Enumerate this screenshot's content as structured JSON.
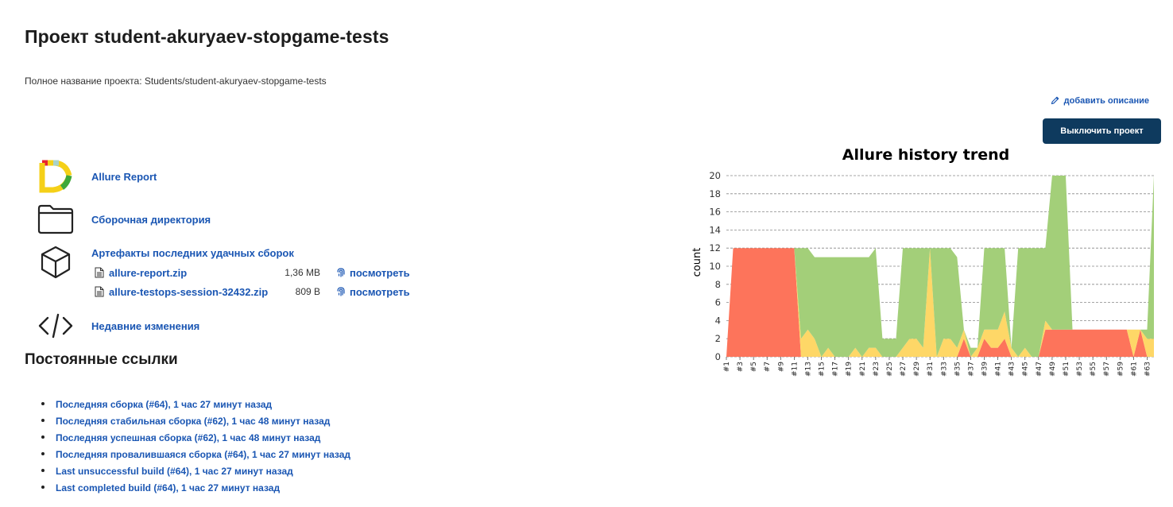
{
  "header": {
    "title": "Проект student-akuryaev-stopgame-tests",
    "full_name": "Полное название проекта: Students/student-akuryaev-stopgame-tests"
  },
  "actions": {
    "add_description": "добавить описание",
    "disable_project": "Выключить проект"
  },
  "tasks": {
    "allure_report": "Allure Report",
    "workspace": "Сборочная директория",
    "artifacts_title": "Артефакты последних удачных сборок",
    "recent_changes": "Недавние изменения"
  },
  "artifacts": [
    {
      "name": "allure-report.zip",
      "size": "1,36 MB",
      "view": "посмотреть"
    },
    {
      "name": "allure-testops-session-32432.zip",
      "size": "809 B",
      "view": "посмотреть"
    }
  ],
  "permalinks": {
    "title": "Постоянные ссылки",
    "items": [
      "Последняя сборка (#64), 1 час 27 минут назад",
      "Последняя стабильная сборка (#62), 1 час 48 минут назад",
      "Последняя успешная сборка (#62), 1 час 48 минут назад",
      "Последняя провалившаяся сборка (#64), 1 час 27 минут назад",
      "Last unsuccessful build (#64), 1 час 27 минут назад",
      "Last completed build (#64), 1 час 27 минут назад"
    ]
  },
  "colors": {
    "link": "#1a56b3",
    "button_bg": "#0e3a5e",
    "failed": "#fd745b",
    "broken": "#fed767",
    "passed": "#a3cf79"
  },
  "chart_data": {
    "type": "area",
    "title": "Allure history trend",
    "ylabel": "count",
    "xlabel": "",
    "ylim": [
      0,
      20
    ],
    "yticks": [
      0,
      2,
      4,
      6,
      8,
      10,
      12,
      14,
      16,
      18,
      20
    ],
    "grid": true,
    "x": [
      1,
      2,
      3,
      4,
      5,
      6,
      7,
      8,
      9,
      10,
      11,
      12,
      13,
      14,
      15,
      16,
      17,
      18,
      19,
      20,
      21,
      22,
      23,
      24,
      25,
      26,
      27,
      28,
      29,
      30,
      31,
      32,
      33,
      34,
      35,
      36,
      37,
      38,
      39,
      40,
      41,
      42,
      43,
      44,
      45,
      46,
      47,
      48,
      49,
      50,
      51,
      52,
      53,
      54,
      55,
      56,
      57,
      58,
      59,
      60,
      61,
      62,
      63,
      64
    ],
    "x_tick_labels": [
      "#1",
      "#3",
      "#5",
      "#7",
      "#9",
      "#11",
      "#13",
      "#15",
      "#17",
      "#19",
      "#21",
      "#23",
      "#25",
      "#27",
      "#29",
      "#31",
      "#33",
      "#35",
      "#37",
      "#39",
      "#41",
      "#43",
      "#45",
      "#47",
      "#49",
      "#51",
      "#53",
      "#55",
      "#57",
      "#59",
      "#61",
      "#63"
    ],
    "series": [
      {
        "key": "failed",
        "values": [
          0,
          12,
          12,
          12,
          12,
          12,
          12,
          12,
          12,
          12,
          12,
          0,
          0,
          0,
          0,
          0,
          0,
          0,
          0,
          0,
          0,
          0,
          0,
          0,
          0,
          0,
          0,
          0,
          0,
          0,
          0,
          0,
          0,
          0,
          0,
          2,
          0,
          0,
          2,
          1,
          1,
          2,
          0,
          0,
          0,
          0,
          0,
          3,
          3,
          3,
          3,
          3,
          3,
          3,
          3,
          3,
          3,
          3,
          3,
          3,
          0,
          3,
          0,
          0
        ]
      },
      {
        "key": "broken",
        "values": [
          0,
          0,
          0,
          0,
          0,
          0,
          0,
          0,
          0,
          0,
          0,
          2,
          3,
          2,
          0,
          1,
          0,
          0,
          0,
          1,
          0,
          1,
          1,
          0,
          0,
          0,
          1,
          2,
          2,
          1,
          12,
          0,
          2,
          2,
          1,
          1,
          0,
          1,
          1,
          2,
          2,
          3,
          1,
          0,
          1,
          0,
          0,
          1,
          0,
          0,
          0,
          0,
          0,
          0,
          0,
          0,
          0,
          0,
          0,
          0,
          3,
          0,
          2,
          2
        ]
      },
      {
        "key": "passed",
        "values": [
          0,
          0,
          0,
          0,
          0,
          0,
          0,
          0,
          0,
          0,
          0,
          10,
          9,
          9,
          11,
          10,
          11,
          11,
          11,
          10,
          11,
          10,
          11,
          2,
          2,
          2,
          11,
          10,
          10,
          11,
          0,
          12,
          10,
          10,
          10,
          0,
          1,
          0,
          9,
          9,
          9,
          7,
          0,
          12,
          11,
          12,
          12,
          8,
          17,
          17,
          17,
          0,
          0,
          0,
          0,
          0,
          0,
          0,
          0,
          0,
          0,
          0,
          1,
          18
        ]
      }
    ]
  }
}
